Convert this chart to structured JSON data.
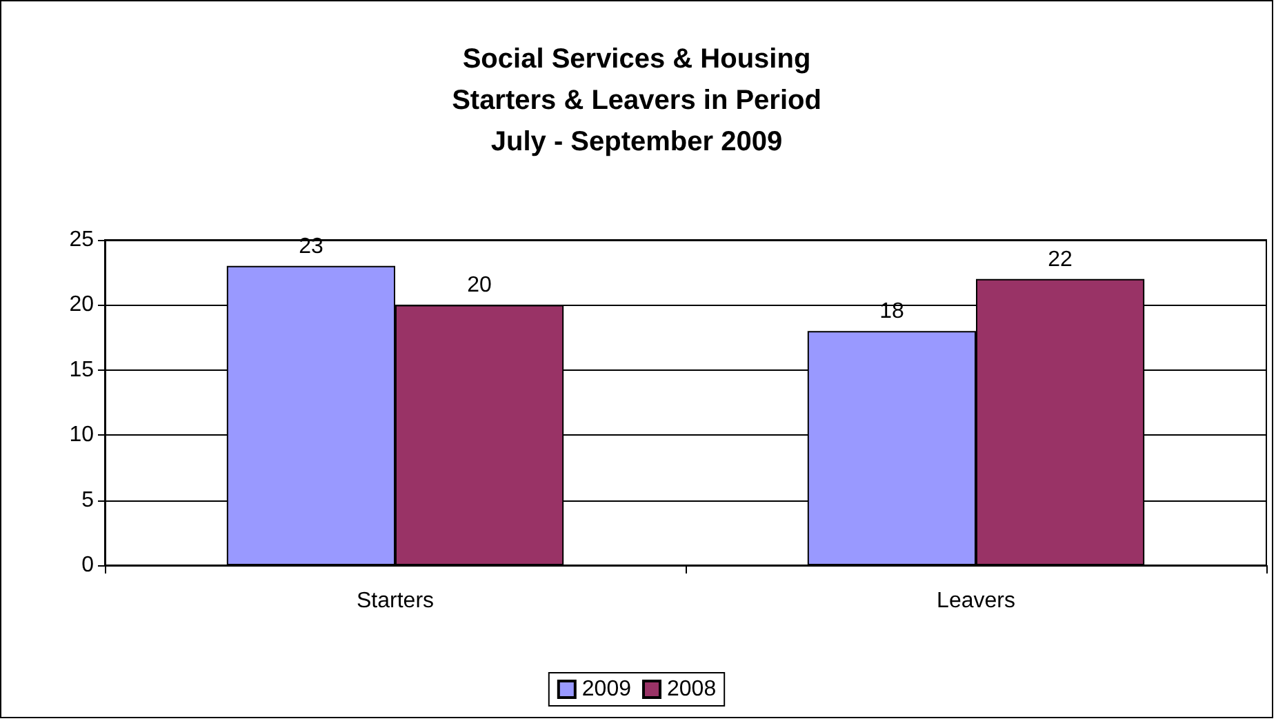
{
  "chart_data": {
    "type": "bar",
    "title": "Social Services & Housing\nStarters & Leavers in Period\nJuly - September 2009",
    "categories": [
      "Starters",
      "Leavers"
    ],
    "series": [
      {
        "name": "2009",
        "color": "#9999ff",
        "values": [
          23,
          18
        ]
      },
      {
        "name": "2008",
        "color": "#993366",
        "values": [
          20,
          22
        ]
      }
    ],
    "ylim": [
      0,
      25
    ],
    "yticks": [
      0,
      5,
      10,
      15,
      20,
      25
    ],
    "grid": "y",
    "legend": "bottom",
    "data_labels": true
  }
}
